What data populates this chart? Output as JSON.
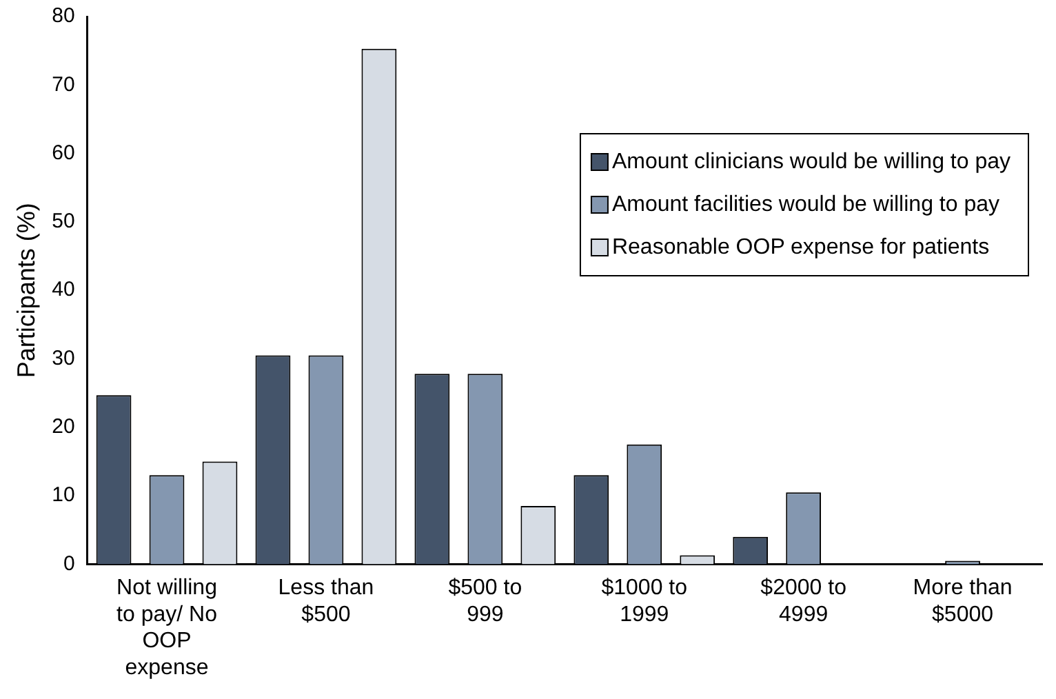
{
  "chart_data": {
    "type": "bar",
    "ylabel": "Participants (%)",
    "categories": [
      "Not willing to pay/ No OOP expense",
      "Less than $500",
      "$500 to 999",
      "$1000 to 1999",
      "$2000 to 4999",
      "More than $5000"
    ],
    "series": [
      {
        "name": "Amount clinicians would be willing to pay",
        "color": "#44546a",
        "values": [
          24.7,
          30.5,
          27.8,
          13,
          4,
          0
        ]
      },
      {
        "name": "Amount facilities would be willing to pay",
        "color": "#8497b0",
        "values": [
          13,
          30.5,
          27.8,
          17.5,
          10.5,
          0.5
        ]
      },
      {
        "name": "Reasonable OOP expense for patients",
        "color": "#d6dce4",
        "values": [
          15,
          75.3,
          8.5,
          1.3,
          0,
          0
        ]
      }
    ],
    "ylim": [
      0,
      80
    ],
    "yticks": [
      0,
      10,
      20,
      30,
      40,
      50,
      60,
      70,
      80
    ],
    "grid": false,
    "legend": "top right"
  }
}
